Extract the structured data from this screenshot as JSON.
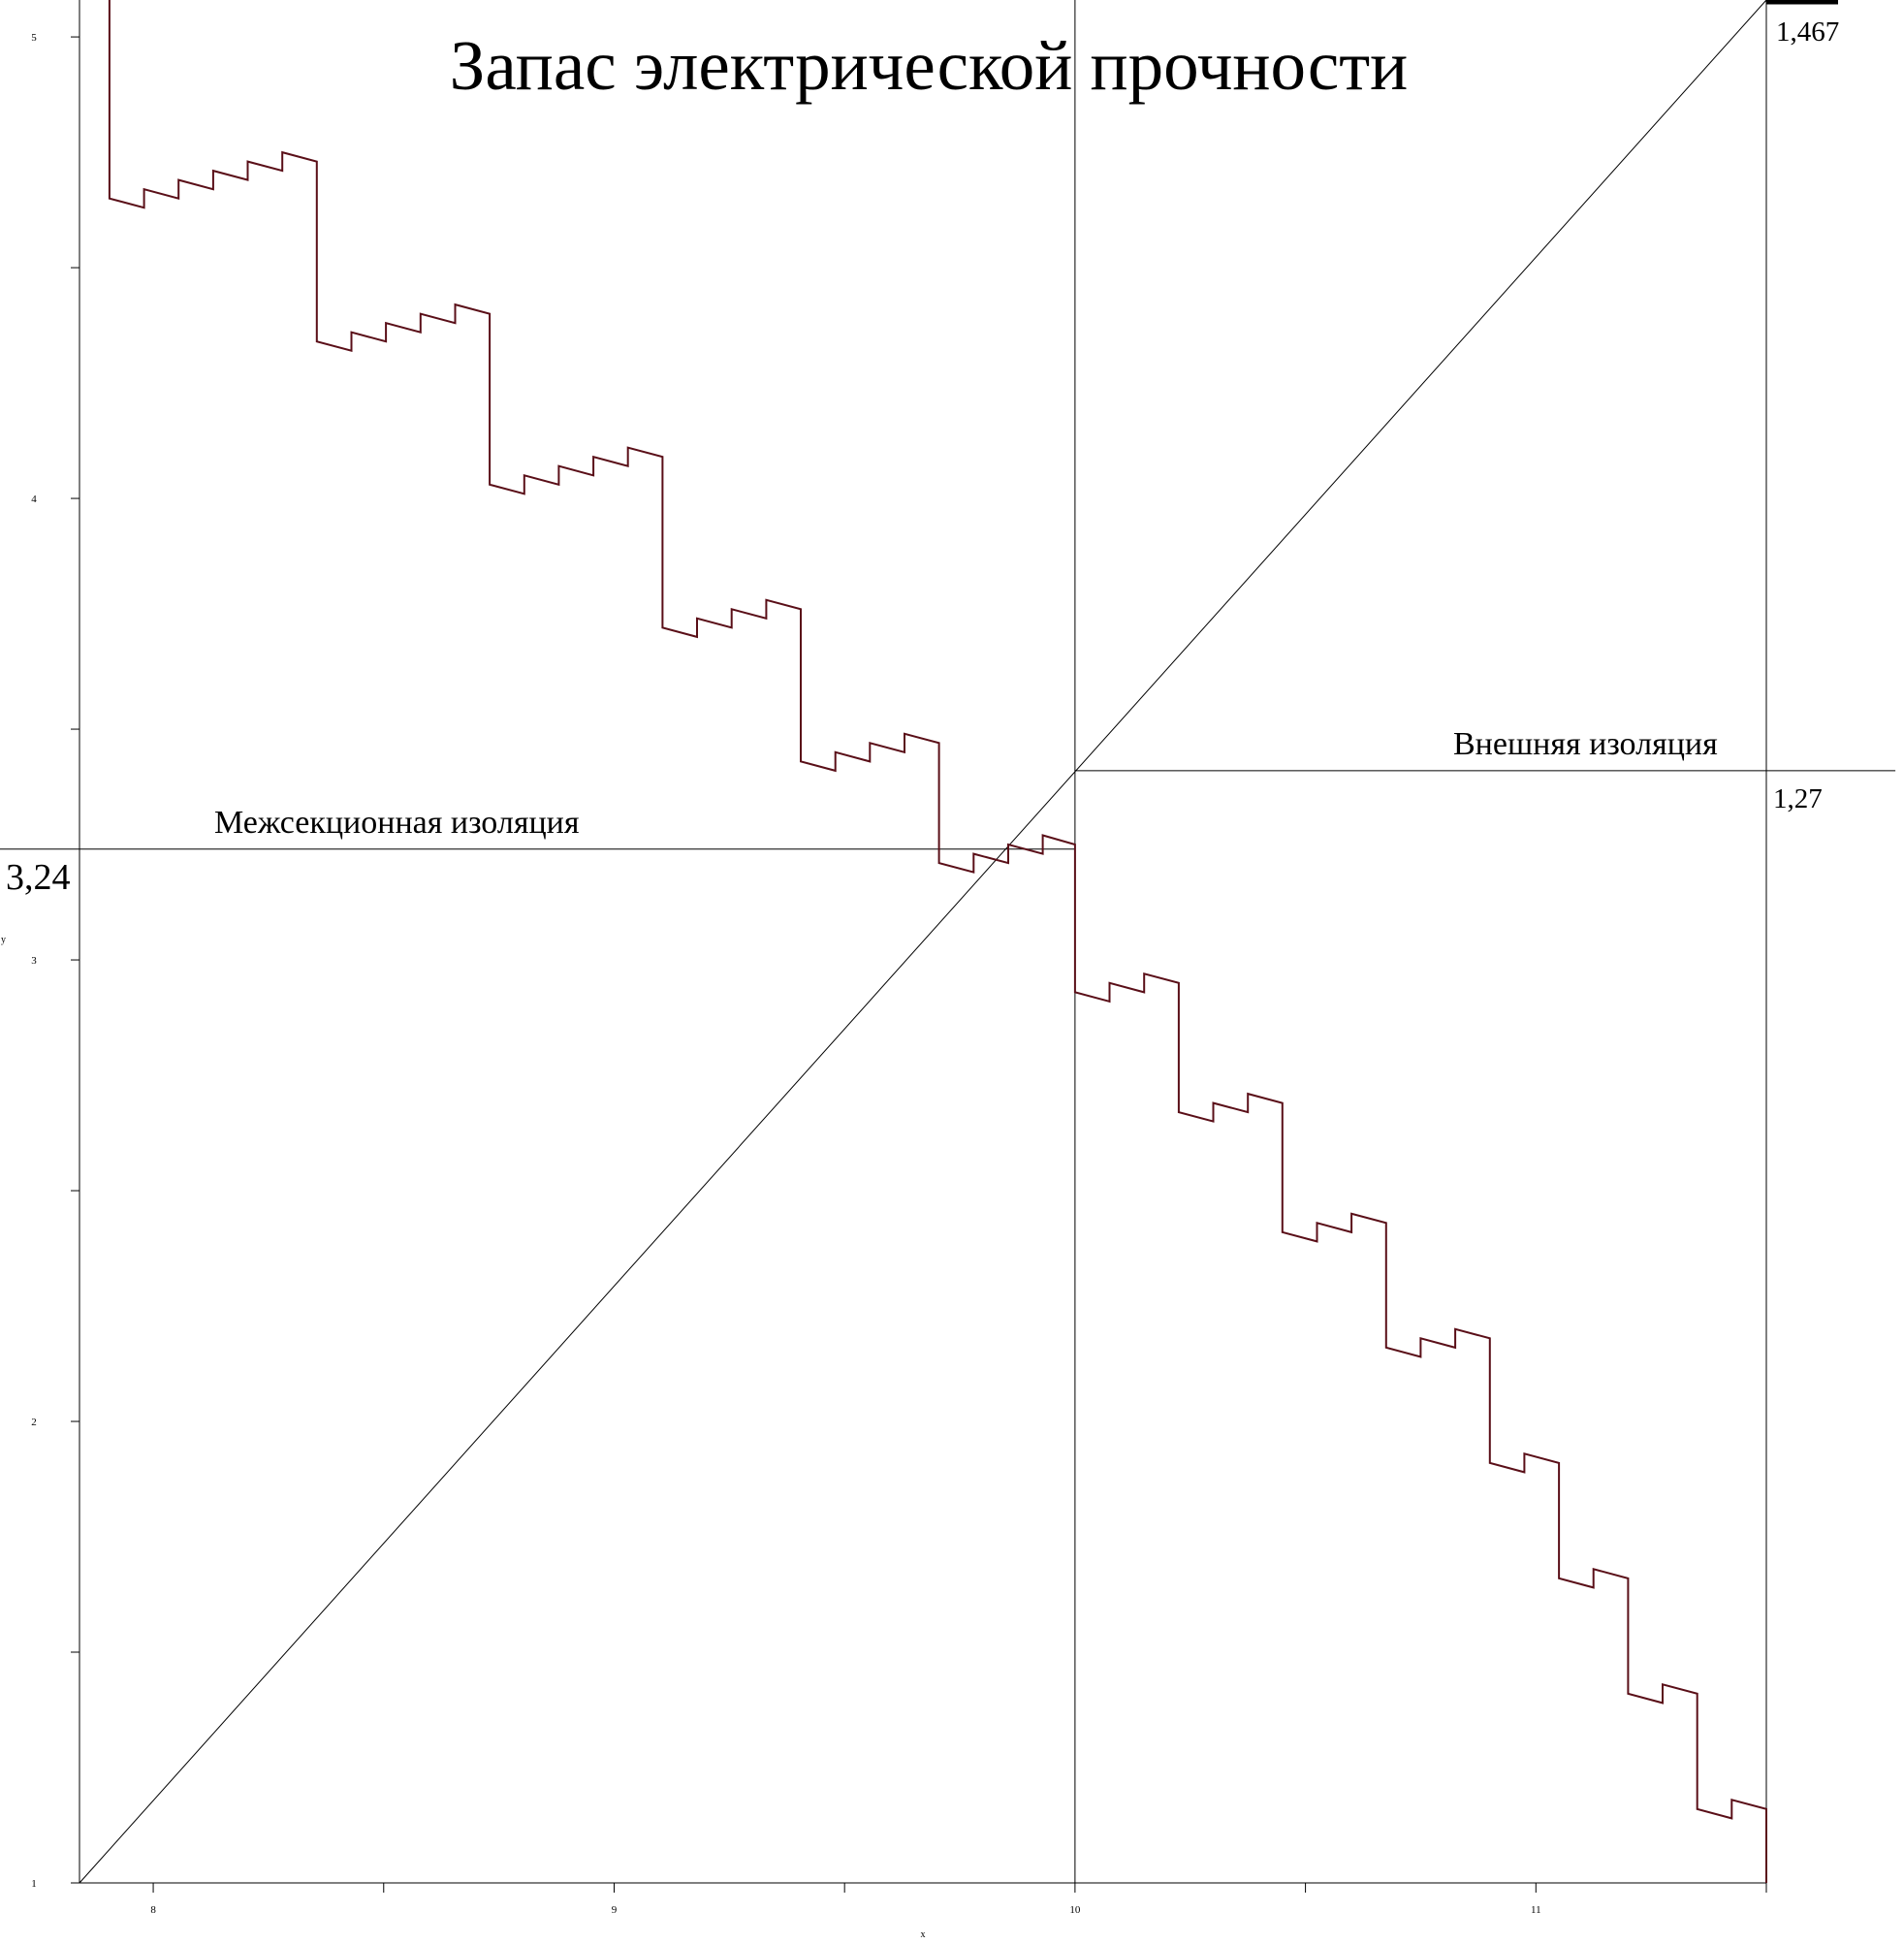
{
  "chart_data": {
    "type": "line",
    "title": "Запас электрической прочности",
    "xlabel": "x",
    "ylabel": "y",
    "xlim": [
      7.84,
      11.5
    ],
    "ylim": [
      1,
      5.08
    ],
    "x_ticks": [
      8,
      8.5,
      9,
      9.5,
      10,
      10.5,
      11,
      11.5
    ],
    "x_tick_labels": [
      "8",
      "",
      "9",
      "",
      "10",
      "",
      "11",
      ""
    ],
    "y_ticks": [
      1,
      1.5,
      2,
      2.5,
      3,
      3.5,
      4,
      4.5,
      5
    ],
    "y_tick_labels": [
      "1",
      "",
      "2",
      "",
      "3",
      "",
      "4",
      "",
      "5"
    ],
    "grid": false,
    "legend": "none",
    "colors": {
      "series": "#5a0f18",
      "axes": "#000000",
      "reference": "#000000"
    },
    "series": [
      {
        "step_points": [
          [
            7.905,
            5.08
          ],
          [
            7.905,
            4.65
          ],
          [
            7.98,
            4.63
          ],
          [
            7.98,
            4.67
          ],
          [
            8.055,
            4.65
          ],
          [
            8.055,
            4.69
          ],
          [
            8.13,
            4.67
          ],
          [
            8.13,
            4.71
          ],
          [
            8.205,
            4.69
          ],
          [
            8.205,
            4.73
          ],
          [
            8.28,
            4.71
          ],
          [
            8.28,
            4.75
          ],
          [
            8.355,
            4.73
          ],
          [
            8.355,
            4.34
          ],
          [
            8.43,
            4.32
          ],
          [
            8.43,
            4.36
          ],
          [
            8.505,
            4.34
          ],
          [
            8.505,
            4.38
          ],
          [
            8.58,
            4.36
          ],
          [
            8.58,
            4.4
          ],
          [
            8.655,
            4.38
          ],
          [
            8.655,
            4.42
          ],
          [
            8.73,
            4.4
          ],
          [
            8.73,
            4.03
          ],
          [
            8.805,
            4.01
          ],
          [
            8.805,
            4.05
          ],
          [
            8.88,
            4.03
          ],
          [
            8.88,
            4.07
          ],
          [
            8.955,
            4.05
          ],
          [
            8.955,
            4.09
          ],
          [
            9.03,
            4.07
          ],
          [
            9.03,
            4.11
          ],
          [
            9.105,
            4.09
          ],
          [
            9.105,
            3.72
          ],
          [
            9.18,
            3.7
          ],
          [
            9.18,
            3.74
          ],
          [
            9.255,
            3.72
          ],
          [
            9.255,
            3.76
          ],
          [
            9.33,
            3.74
          ],
          [
            9.33,
            3.78
          ],
          [
            9.405,
            3.76
          ],
          [
            9.405,
            3.43
          ],
          [
            9.48,
            3.41
          ],
          [
            9.48,
            3.45
          ],
          [
            9.555,
            3.43
          ],
          [
            9.555,
            3.47
          ],
          [
            9.63,
            3.45
          ],
          [
            9.63,
            3.49
          ],
          [
            9.705,
            3.47
          ],
          [
            9.705,
            3.21
          ],
          [
            9.78,
            3.19
          ],
          [
            9.78,
            3.23
          ],
          [
            9.855,
            3.21
          ],
          [
            9.855,
            3.25
          ],
          [
            9.93,
            3.23
          ],
          [
            9.93,
            3.27
          ],
          [
            10.0,
            3.25
          ],
          [
            10.0,
            2.93
          ],
          [
            10.075,
            2.91
          ],
          [
            10.075,
            2.95
          ],
          [
            10.15,
            2.93
          ],
          [
            10.15,
            2.97
          ],
          [
            10.225,
            2.95
          ],
          [
            10.225,
            2.67
          ],
          [
            10.3,
            2.65
          ],
          [
            10.3,
            2.69
          ],
          [
            10.375,
            2.67
          ],
          [
            10.375,
            2.71
          ],
          [
            10.45,
            2.69
          ],
          [
            10.45,
            2.41
          ],
          [
            10.525,
            2.39
          ],
          [
            10.525,
            2.43
          ],
          [
            10.6,
            2.41
          ],
          [
            10.6,
            2.45
          ],
          [
            10.675,
            2.43
          ],
          [
            10.675,
            2.16
          ],
          [
            10.75,
            2.14
          ],
          [
            10.75,
            2.18
          ],
          [
            10.825,
            2.16
          ],
          [
            10.825,
            2.2
          ],
          [
            10.9,
            2.18
          ],
          [
            10.9,
            1.91
          ],
          [
            10.975,
            1.89
          ],
          [
            10.975,
            1.93
          ],
          [
            11.05,
            1.91
          ],
          [
            11.05,
            1.66
          ],
          [
            11.125,
            1.64
          ],
          [
            11.125,
            1.68
          ],
          [
            11.2,
            1.66
          ],
          [
            11.2,
            1.41
          ],
          [
            11.275,
            1.39
          ],
          [
            11.275,
            1.43
          ],
          [
            11.35,
            1.41
          ],
          [
            11.35,
            1.16
          ],
          [
            11.425,
            1.14
          ],
          [
            11.425,
            1.18
          ],
          [
            11.5,
            1.16
          ],
          [
            11.5,
            1.0
          ]
        ]
      }
    ],
    "reference_lines": {
      "diagonal": {
        "from": [
          7.84,
          1.0
        ],
        "to": [
          11.5,
          5.08
        ]
      },
      "vline_left": {
        "x": 10.0,
        "y_from": 1.0,
        "y_to": 5.08
      },
      "vline_right": {
        "x": 11.5,
        "y_from": 1.0,
        "y_to": 5.08
      },
      "hline_left": {
        "y": 3.24,
        "x_from": 7.66,
        "x_to": 10.0
      },
      "hline_right": {
        "y": 3.41,
        "x_from": 10.0,
        "x_to": 11.78
      }
    },
    "annotations": {
      "label_left": "Межсекционная изоляция",
      "label_right": "Внешняя изоляция",
      "value_left": "3,24",
      "value_right": "1,27",
      "value_top": "1,467"
    }
  }
}
